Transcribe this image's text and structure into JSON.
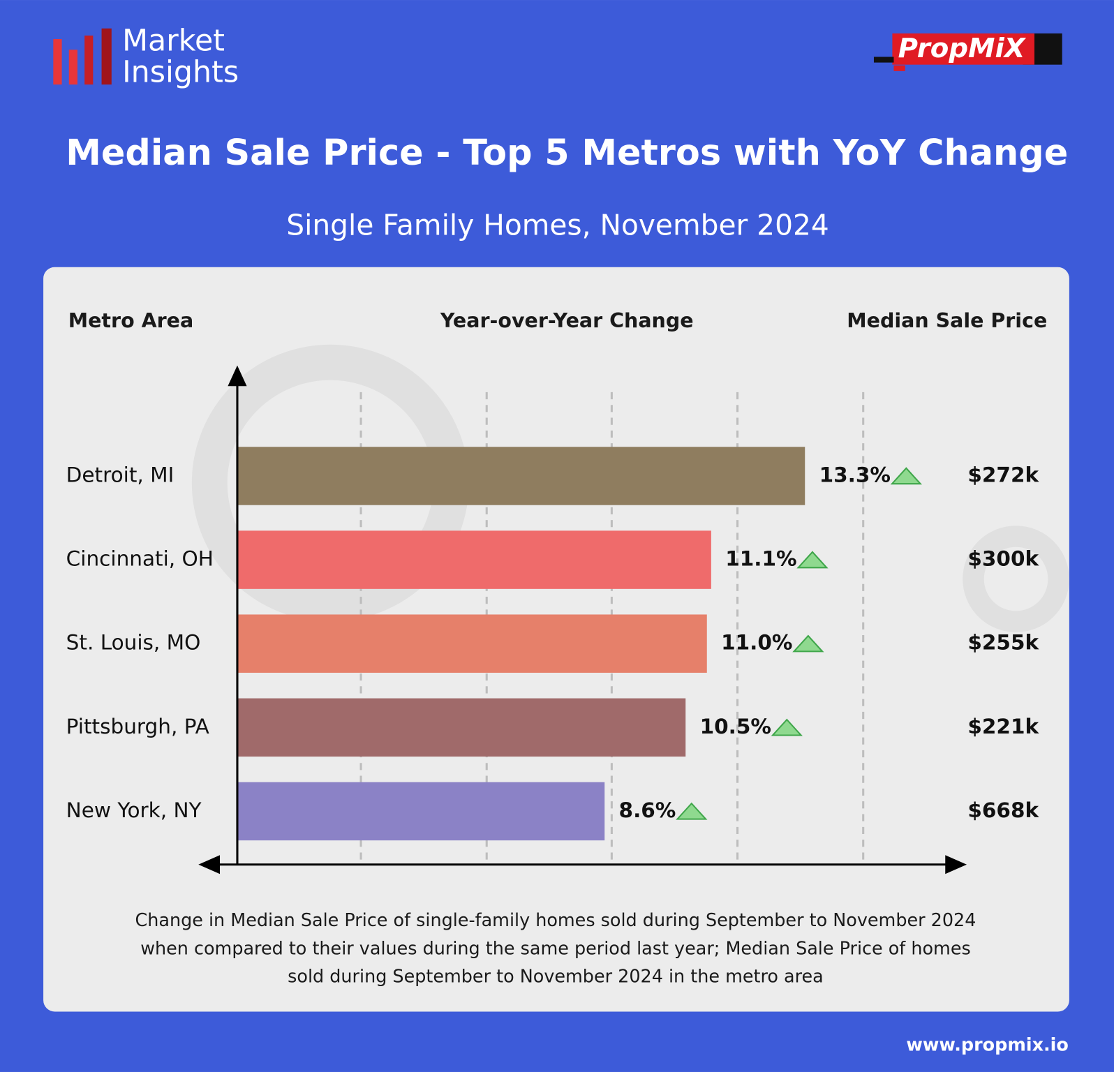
{
  "header": {
    "logo_line1": "Market",
    "logo_line2": "Insights",
    "brand": "PropMiX"
  },
  "chart_data": {
    "type": "bar",
    "orientation": "horizontal",
    "title": "Median Sale Price - Top 5 Metros with YoY Change",
    "subtitle": "Single Family Homes, November 2024",
    "column_headers": [
      "Metro Area",
      "Year-over-Year Change",
      "Median Sale Price"
    ],
    "categories": [
      "Detroit, MI",
      "Cincinnati, OH",
      "St. Louis, MO",
      "Pittsburgh, PA",
      "New York, NY"
    ],
    "values": [
      13.3,
      11.1,
      11.0,
      10.5,
      8.6
    ],
    "value_labels": [
      "13.3%",
      "11.1%",
      "11.0%",
      "10.5%",
      "8.6%"
    ],
    "colors": [
      "#8f7d5f",
      "#ef6b6b",
      "#e6806a",
      "#a06a6a",
      "#8b82c6"
    ],
    "price_labels": [
      "$272k",
      "$300k",
      "$255k",
      "$221k",
      "$668k"
    ],
    "xlim": [
      0,
      17
    ],
    "notes": [
      "Change in Median Sale Price of single-family homes sold during September to November 2024",
      "when compared to their values during the same period last year; Median Sale Price of homes",
      "sold during September to November 2024 in the metro area"
    ]
  },
  "footer": {
    "url": "www.propmix.io"
  }
}
